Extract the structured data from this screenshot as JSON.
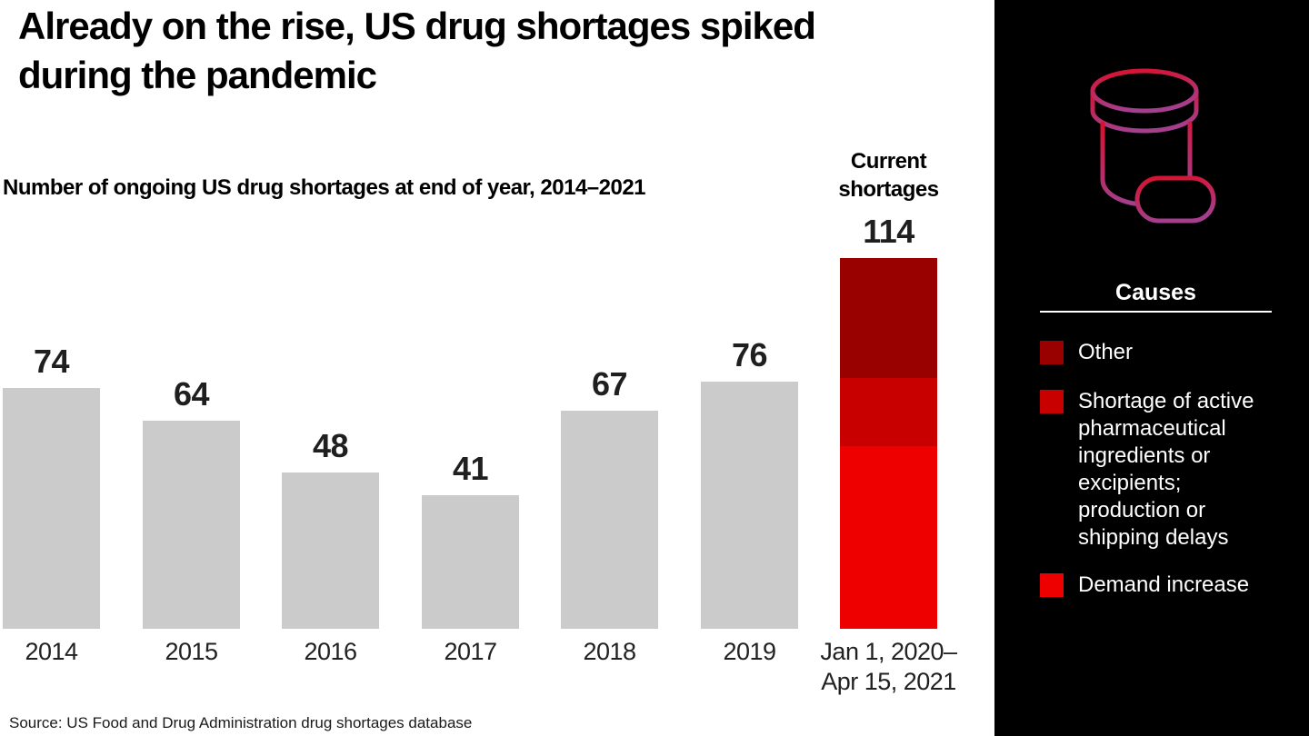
{
  "header": {
    "title": "Already on the rise, US drug shortages spiked during the pandemic",
    "subtitle": "Number of ongoing US drug shortages at end of year, 2014–2021"
  },
  "chart_data": {
    "type": "bar",
    "title": "Already on the rise, US drug shortages spiked during the pandemic",
    "subtitle": "Number of ongoing US drug shortages at end of year, 2014–2021",
    "categories": [
      "2014",
      "2015",
      "2016",
      "2017",
      "2018",
      "2019",
      "Jan 1, 2020–\nApr 15, 2021"
    ],
    "values": [
      74,
      64,
      48,
      41,
      67,
      76,
      114
    ],
    "value_labels_shown": true,
    "grid": false,
    "axes_shown": false,
    "ylim": [
      0,
      114
    ],
    "bar_color": "#cbcbcb",
    "current_column_header": "Current shortages",
    "stacked_last_bar": {
      "total": 114,
      "segments_top_to_bottom": [
        {
          "name": "Other",
          "value": 37,
          "color": "#990000"
        },
        {
          "name": "Shortage of active pharmaceutical ingredients or excipients; production or shipping delays",
          "value": 21,
          "color": "#c80000"
        },
        {
          "name": "Demand increase",
          "value": 56,
          "color": "#ee0000"
        }
      ]
    }
  },
  "legend": {
    "title": "Causes",
    "position": "right-panel",
    "items": [
      {
        "label": "Other",
        "color": "#990000"
      },
      {
        "label": "Shortage of active pharmaceutical ingredients or excipients; production or shipping delays",
        "color": "#c80000"
      },
      {
        "label": "Demand increase",
        "color": "#ee0000"
      }
    ]
  },
  "panel": {
    "background": "#000000",
    "icon": "pill-bottle-icon",
    "icon_gradient_top": "#d8112e",
    "icon_gradient_bottom": "#a53e8c"
  },
  "footer": {
    "source": "Source: US Food and Drug Administration drug shortages database"
  }
}
